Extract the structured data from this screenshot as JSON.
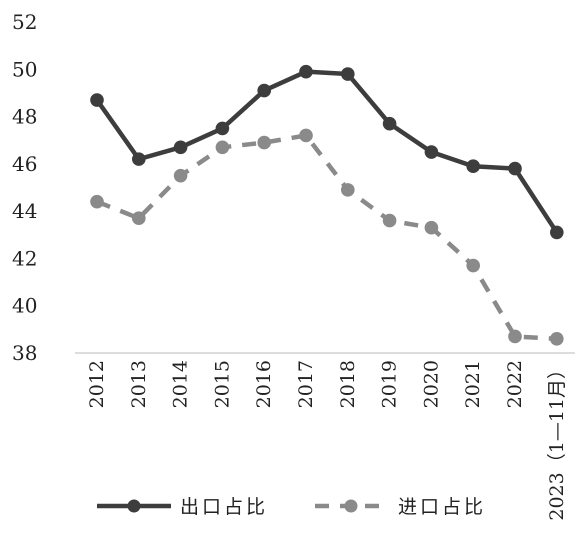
{
  "chart_data": {
    "type": "line",
    "x": [
      "2012",
      "2013",
      "2014",
      "2015",
      "2016",
      "2017",
      "2018",
      "2019",
      "2020",
      "2021",
      "2022",
      "2023（1—11月）"
    ],
    "series": [
      {
        "name": "出口占比",
        "values": [
          48.7,
          46.2,
          46.7,
          47.5,
          49.1,
          49.9,
          49.8,
          47.7,
          46.5,
          45.9,
          45.8,
          43.1
        ],
        "color": "#3d3d3d",
        "style": "solid"
      },
      {
        "name": "进口占比",
        "values": [
          44.4,
          43.7,
          45.5,
          46.7,
          46.9,
          47.2,
          44.9,
          43.6,
          43.3,
          41.7,
          38.7,
          38.6
        ],
        "color": "#8a8a8a",
        "style": "dashed"
      }
    ],
    "yticks": [
      "52",
      "50",
      "48",
      "46",
      "44",
      "42",
      "40",
      "38"
    ],
    "ylim": [
      38,
      52
    ],
    "grid": false,
    "legend_position": "bottom"
  }
}
